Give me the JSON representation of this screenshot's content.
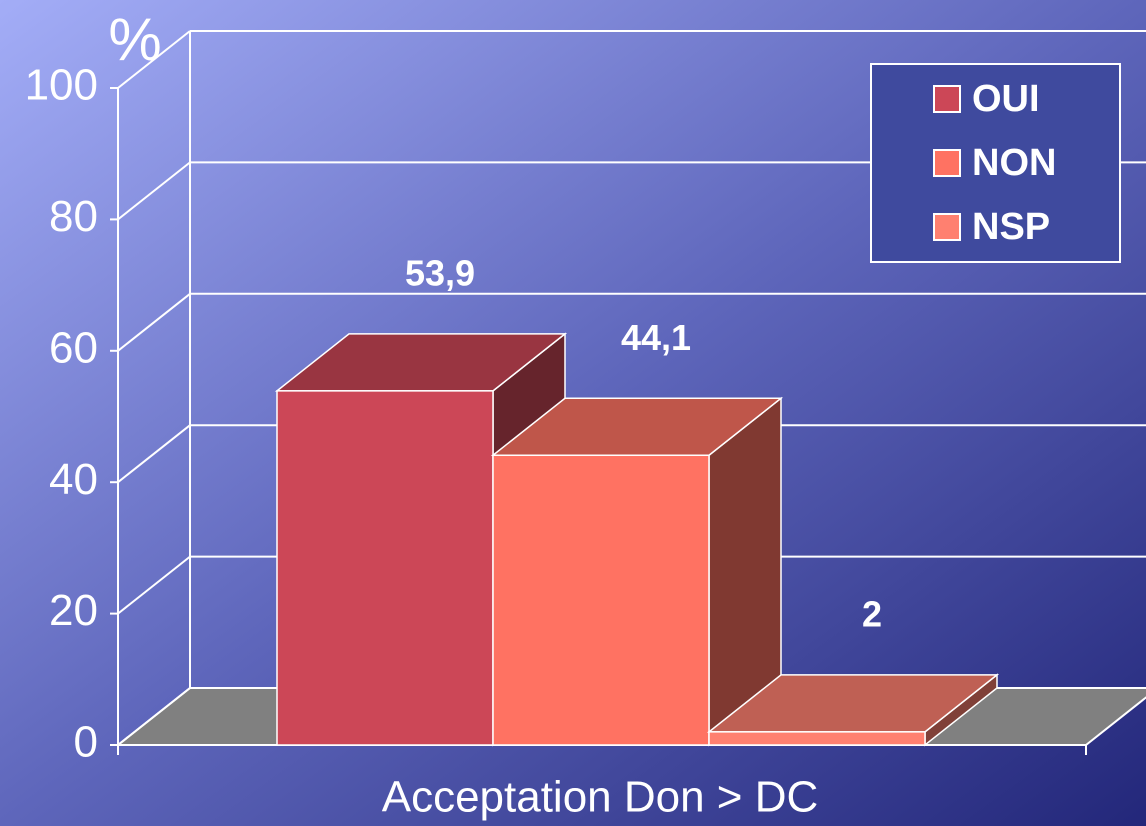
{
  "chart_data": {
    "type": "bar3d",
    "y_label": "%",
    "categories": [
      "Acceptation Don > DC"
    ],
    "series": [
      {
        "name": "OUI",
        "color": "#cc4757",
        "values": [
          53.9
        ],
        "value_labels": [
          "53,9"
        ]
      },
      {
        "name": "NON",
        "color": "#ff7262",
        "values": [
          44.1
        ],
        "value_labels": [
          "44,1"
        ]
      },
      {
        "name": "NSP",
        "color": "#ff8070",
        "values": [
          2
        ],
        "value_labels": [
          "2"
        ]
      }
    ],
    "ylim": [
      0,
      100
    ],
    "yticks": [
      0,
      20,
      40,
      60,
      80,
      100
    ],
    "grid": true,
    "legend": "top-right"
  }
}
